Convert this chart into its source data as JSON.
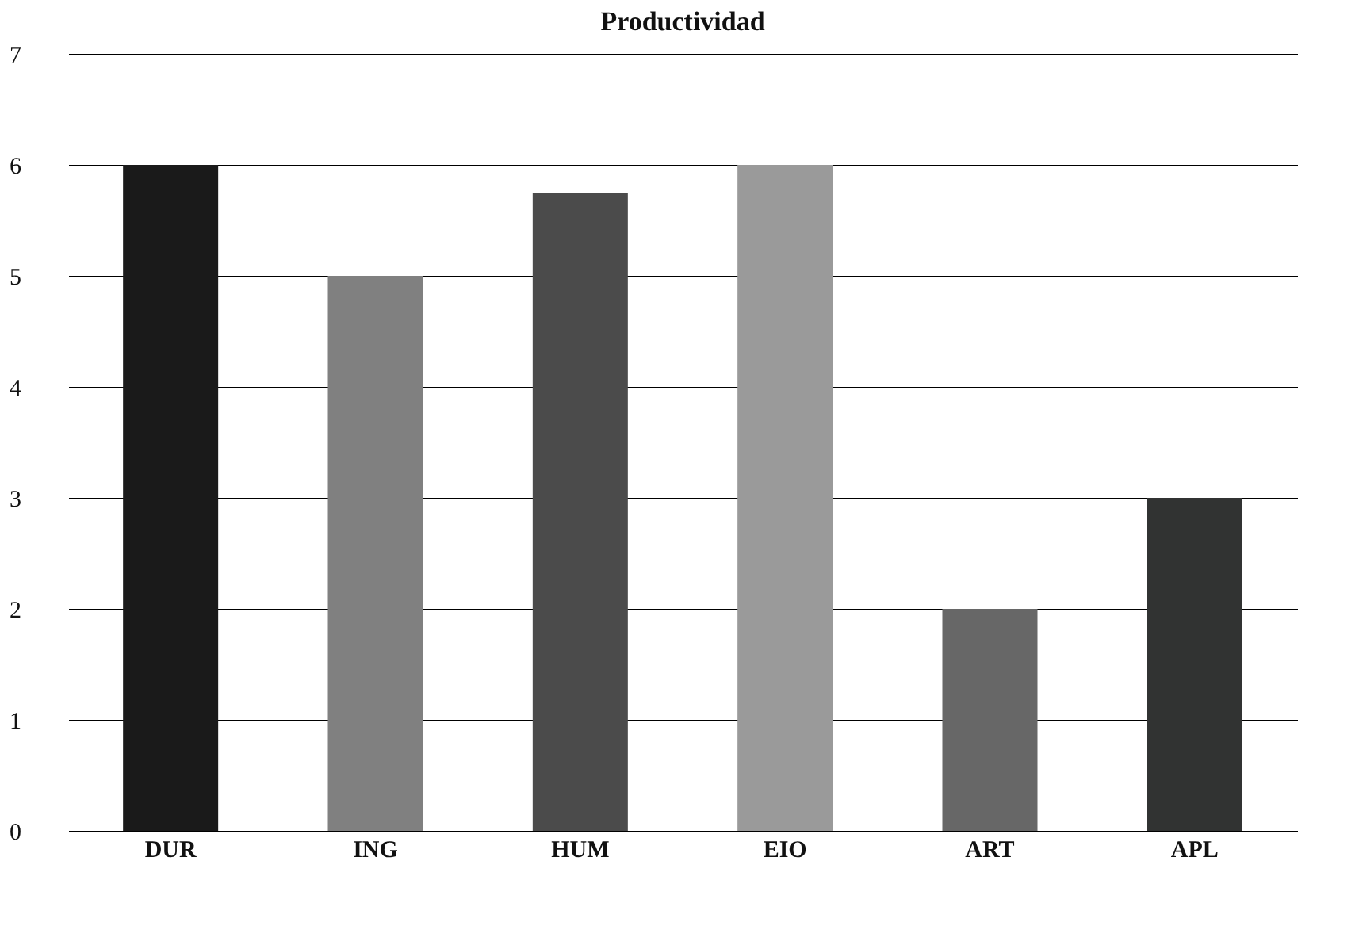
{
  "chart_data": {
    "type": "bar",
    "title": "Productividad",
    "categories": [
      "DUR",
      "ING",
      "HUM",
      "EIO",
      "ART",
      "APL"
    ],
    "values": [
      6,
      5,
      5.75,
      6,
      2,
      3
    ],
    "colors": [
      "#1a1a1a",
      "#808080",
      "#4b4b4b",
      "#9a9a9a",
      "#676767",
      "#313332"
    ],
    "ylim": [
      0,
      7
    ],
    "yticks": [
      0,
      1,
      2,
      3,
      4,
      5,
      6,
      7
    ],
    "grid": "y",
    "legend": false
  }
}
